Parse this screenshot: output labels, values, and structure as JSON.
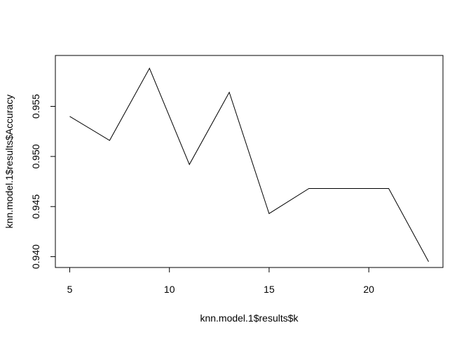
{
  "chart_data": {
    "type": "line",
    "title": "",
    "xlabel": "knn.model.1$results$k",
    "ylabel": "knn.model.1$results$Accuracy",
    "x": [
      5,
      7,
      9,
      11,
      13,
      15,
      17,
      19,
      21,
      23
    ],
    "series": [
      {
        "values": [
          0.954,
          0.9516,
          0.9588,
          0.9492,
          0.9564,
          0.9443,
          0.9468,
          0.9468,
          0.9468,
          0.9395
        ]
      }
    ],
    "xlim": [
      4.28,
      23.72
    ],
    "ylim": [
      0.93892,
      0.96008
    ],
    "x_ticks": [
      "5",
      "10",
      "15",
      "20"
    ],
    "y_ticks": [
      "0.940",
      "0.945",
      "0.950",
      "0.955"
    ],
    "grid": false,
    "legend": "none",
    "line_color": "#000000"
  }
}
